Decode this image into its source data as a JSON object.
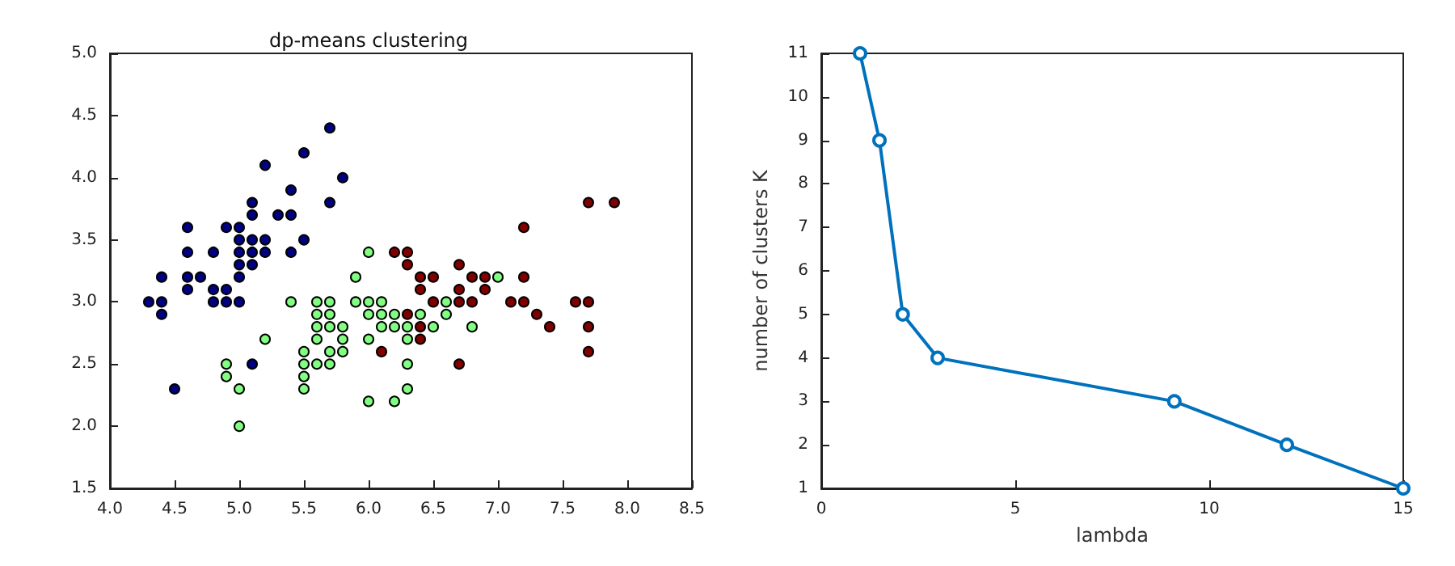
{
  "chart_data": [
    {
      "type": "scatter",
      "title": "dp-means clustering",
      "marker": "circle",
      "grid": false,
      "xlim": [
        4,
        8.5
      ],
      "xticks": [
        {
          "value": 4,
          "label": "4.0"
        },
        {
          "value": 4.5,
          "label": "4.5"
        },
        {
          "value": 5,
          "label": "5.0"
        },
        {
          "value": 5.5,
          "label": "5.5"
        },
        {
          "value": 6,
          "label": "6.0"
        },
        {
          "value": 6.5,
          "label": "6.5"
        },
        {
          "value": 7,
          "label": "7.0"
        },
        {
          "value": 7.5,
          "label": "7.5"
        },
        {
          "value": 8,
          "label": "8.0"
        },
        {
          "value": 8.5,
          "label": "8.5"
        }
      ],
      "ylim": [
        1.5,
        5
      ],
      "yticks": [
        {
          "value": 1.5,
          "label": "1.5"
        },
        {
          "value": 2,
          "label": "2.0"
        },
        {
          "value": 2.5,
          "label": "2.5"
        },
        {
          "value": 3,
          "label": "3.0"
        },
        {
          "value": 3.5,
          "label": "3.5"
        },
        {
          "value": 4,
          "label": "4.0"
        },
        {
          "value": 4.5,
          "label": "4.5"
        },
        {
          "value": 5,
          "label": "5.0"
        }
      ],
      "series": [
        {
          "color": "#000080",
          "x": [
            4.3,
            4.4,
            4.4,
            4.4,
            4.5,
            4.6,
            4.6,
            4.6,
            4.6,
            4.7,
            4.8,
            4.8,
            4.8,
            4.9,
            4.9,
            4.9,
            5.0,
            5.0,
            5.0,
            5.0,
            5.0,
            5.0,
            5.1,
            5.1,
            5.1,
            5.1,
            5.1,
            5.1,
            5.2,
            5.2,
            5.2,
            5.3,
            5.4,
            5.4,
            5.4,
            5.5,
            5.5,
            5.7,
            5.7,
            5.8
          ],
          "values": [
            3.0,
            3.2,
            3.0,
            2.9,
            2.3,
            3.6,
            3.4,
            3.2,
            3.1,
            3.2,
            3.4,
            3.1,
            3.0,
            3.6,
            3.1,
            3.0,
            3.6,
            3.5,
            3.4,
            3.3,
            3.2,
            3.0,
            3.8,
            3.7,
            3.5,
            3.4,
            3.3,
            2.5,
            4.1,
            3.5,
            3.4,
            3.7,
            3.9,
            3.7,
            3.4,
            4.2,
            3.5,
            4.4,
            3.8,
            4.0
          ]
        },
        {
          "color": "#80ff80",
          "x": [
            4.9,
            4.9,
            5.0,
            5.0,
            5.2,
            5.4,
            5.5,
            5.5,
            5.5,
            5.5,
            5.6,
            5.6,
            5.6,
            5.6,
            5.6,
            5.7,
            5.7,
            5.7,
            5.7,
            5.7,
            5.8,
            5.8,
            5.8,
            5.9,
            5.9,
            6.0,
            6.0,
            6.0,
            6.0,
            6.0,
            6.1,
            6.1,
            6.1,
            6.2,
            6.2,
            6.2,
            6.3,
            6.3,
            6.3,
            6.3,
            6.4,
            6.5,
            6.6,
            6.6,
            6.8,
            7.0
          ],
          "values": [
            2.5,
            2.4,
            2.3,
            2.0,
            2.7,
            3.0,
            2.6,
            2.5,
            2.4,
            2.3,
            3.0,
            2.9,
            2.8,
            2.7,
            2.5,
            3.0,
            2.9,
            2.8,
            2.6,
            2.5,
            2.8,
            2.7,
            2.6,
            3.2,
            3.0,
            3.4,
            3.0,
            2.9,
            2.7,
            2.2,
            3.0,
            2.9,
            2.8,
            2.9,
            2.8,
            2.2,
            2.8,
            2.7,
            2.5,
            2.3,
            2.9,
            2.8,
            3.0,
            2.9,
            2.8,
            3.2
          ]
        },
        {
          "color": "#800000",
          "x": [
            6.1,
            6.2,
            6.3,
            6.3,
            6.3,
            6.4,
            6.4,
            6.4,
            6.4,
            6.5,
            6.5,
            6.7,
            6.7,
            6.7,
            6.7,
            6.8,
            6.8,
            6.9,
            6.9,
            7.1,
            7.2,
            7.2,
            7.2,
            7.3,
            7.4,
            7.6,
            7.7,
            7.7,
            7.7,
            7.7,
            7.9
          ],
          "values": [
            2.6,
            3.4,
            3.4,
            3.3,
            2.9,
            3.2,
            3.1,
            2.8,
            2.7,
            3.2,
            3.0,
            3.3,
            3.1,
            3.0,
            2.5,
            3.2,
            3.0,
            3.2,
            3.1,
            3.0,
            3.6,
            3.2,
            3.0,
            2.9,
            2.8,
            3.0,
            3.8,
            3.0,
            2.8,
            2.6,
            3.8
          ]
        }
      ]
    },
    {
      "type": "line",
      "xlabel": "lambda",
      "ylabel": "number of clusters K",
      "marker": "circle",
      "line_style": "solid",
      "grid": false,
      "xlim": [
        0,
        15
      ],
      "xticks": [
        0,
        5,
        10,
        15
      ],
      "ylim": [
        1,
        11
      ],
      "yticks": [
        1,
        2,
        3,
        4,
        5,
        6,
        7,
        8,
        9,
        10,
        11
      ],
      "series": [
        {
          "color": "#0072bd",
          "x": [
            1,
            1.5,
            2.1,
            3,
            9.1,
            12,
            15
          ],
          "values": [
            11,
            9,
            5,
            4,
            3,
            2,
            1
          ]
        }
      ]
    }
  ]
}
